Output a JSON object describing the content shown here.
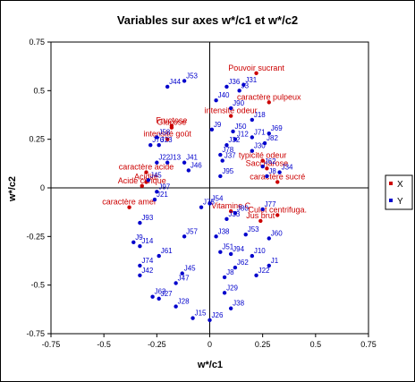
{
  "chart_data": {
    "type": "scatter",
    "title": "Variables sur axes w*/c1 et w*/c2",
    "xlabel": "w*/c1",
    "ylabel": "w*/c2",
    "xlim": [
      -0.75,
      0.75
    ],
    "ylim": [
      -0.75,
      0.75
    ],
    "xticks": [
      "-0.75",
      "-0.5",
      "-0.25",
      "0",
      "0.25",
      "0.5",
      "0.75"
    ],
    "yticks": [
      "0.75",
      "0.5",
      "0.25",
      "0",
      "-0.25",
      "-0.5",
      "-0.75"
    ],
    "legend": {
      "placement": "right",
      "entries": [
        "X",
        "Y"
      ]
    },
    "colors": {
      "X": "#cc0000",
      "Y": "#0000cc"
    },
    "series": [
      {
        "name": "X",
        "points": [
          {
            "label": "Pouvoir sucrant",
            "x": 0.22,
            "y": 0.59
          },
          {
            "label": "caractère pulpeux",
            "x": 0.28,
            "y": 0.44
          },
          {
            "label": "intensité odeur",
            "x": 0.1,
            "y": 0.37
          },
          {
            "label": "Fructose",
            "x": -0.18,
            "y": 0.32
          },
          {
            "label": "Glucose",
            "x": -0.18,
            "y": 0.31
          },
          {
            "label": "intensité goût",
            "x": -0.2,
            "y": 0.25
          },
          {
            "label": "typicité odeur",
            "x": 0.25,
            "y": 0.14
          },
          {
            "label": "Saccharose",
            "x": 0.27,
            "y": 0.1
          },
          {
            "label": "caractère acide",
            "x": -0.3,
            "y": 0.08
          },
          {
            "label": "caractère sucré",
            "x": 0.32,
            "y": 0.03
          },
          {
            "label": "Acidité",
            "x": -0.3,
            "y": 0.03
          },
          {
            "label": "Acide citrique",
            "x": -0.32,
            "y": 0.01
          },
          {
            "label": "caractère amer",
            "x": -0.38,
            "y": -0.1
          },
          {
            "label": "Vitamine C",
            "x": 0.1,
            "y": -0.12
          },
          {
            "label": "Culot centrifuga.",
            "x": 0.32,
            "y": -0.14
          },
          {
            "label": "Jus brut",
            "x": 0.24,
            "y": -0.17
          }
        ]
      },
      {
        "name": "Y",
        "points": [
          {
            "label": "J53",
            "x": -0.12,
            "y": 0.55
          },
          {
            "label": "J44",
            "x": -0.2,
            "y": 0.52
          },
          {
            "label": "J36",
            "x": 0.08,
            "y": 0.52
          },
          {
            "label": "J31",
            "x": 0.16,
            "y": 0.53
          },
          {
            "label": "J3",
            "x": 0.14,
            "y": 0.5
          },
          {
            "label": "J40",
            "x": 0.03,
            "y": 0.45
          },
          {
            "label": "J90",
            "x": 0.1,
            "y": 0.41
          },
          {
            "label": "J18",
            "x": 0.2,
            "y": 0.35
          },
          {
            "label": "J9",
            "x": 0.01,
            "y": 0.3
          },
          {
            "label": "J69",
            "x": 0.28,
            "y": 0.28
          },
          {
            "label": "J50",
            "x": 0.11,
            "y": 0.29
          },
          {
            "label": "J12",
            "x": 0.12,
            "y": 0.25
          },
          {
            "label": "J71",
            "x": 0.2,
            "y": 0.26
          },
          {
            "label": "J82",
            "x": 0.26,
            "y": 0.23
          },
          {
            "label": "J32",
            "x": 0.08,
            "y": 0.22
          },
          {
            "label": "J58",
            "x": -0.25,
            "y": 0.26
          },
          {
            "label": "J76",
            "x": -0.28,
            "y": 0.22
          },
          {
            "label": "J23",
            "x": -0.24,
            "y": 0.22
          },
          {
            "label": "J30",
            "x": 0.2,
            "y": 0.19
          },
          {
            "label": "J78",
            "x": 0.05,
            "y": 0.17
          },
          {
            "label": "J37",
            "x": 0.06,
            "y": 0.14
          },
          {
            "label": "J22",
            "x": -0.25,
            "y": 0.13
          },
          {
            "label": "J13",
            "x": -0.2,
            "y": 0.13
          },
          {
            "label": "J41",
            "x": -0.12,
            "y": 0.13
          },
          {
            "label": "J46",
            "x": -0.1,
            "y": 0.09
          },
          {
            "label": "J95",
            "x": 0.05,
            "y": 0.06
          },
          {
            "label": "J8",
            "x": 0.27,
            "y": 0.06
          },
          {
            "label": "J62",
            "x": 0.25,
            "y": 0.11
          },
          {
            "label": "J34",
            "x": 0.33,
            "y": 0.08
          },
          {
            "label": "J45",
            "x": -0.29,
            "y": 0.04
          },
          {
            "label": "J97",
            "x": -0.25,
            "y": -0.02
          },
          {
            "label": "J21",
            "x": -0.26,
            "y": -0.06
          },
          {
            "label": "J54",
            "x": 0.0,
            "y": -0.08
          },
          {
            "label": "J75",
            "x": -0.04,
            "y": -0.1
          },
          {
            "label": "J80",
            "x": 0.12,
            "y": -0.13
          },
          {
            "label": "J33",
            "x": 0.08,
            "y": -0.16
          },
          {
            "label": "J77",
            "x": 0.25,
            "y": -0.11
          },
          {
            "label": "J93",
            "x": -0.33,
            "y": -0.18
          },
          {
            "label": "J57",
            "x": -0.12,
            "y": -0.25
          },
          {
            "label": "J38a",
            "x": 0.03,
            "y": -0.25
          },
          {
            "label": "J53a",
            "x": 0.17,
            "y": -0.24
          },
          {
            "label": "J60",
            "x": 0.28,
            "y": -0.26
          },
          {
            "label": "J9a",
            "x": -0.36,
            "y": -0.28
          },
          {
            "label": "J14",
            "x": -0.33,
            "y": -0.3
          },
          {
            "label": "J51",
            "x": 0.05,
            "y": -0.33
          },
          {
            "label": "J94",
            "x": 0.1,
            "y": -0.34
          },
          {
            "label": "J61",
            "x": -0.24,
            "y": -0.35
          },
          {
            "label": "J10",
            "x": 0.2,
            "y": -0.35
          },
          {
            "label": "J74",
            "x": -0.33,
            "y": -0.4
          },
          {
            "label": "J62a",
            "x": 0.12,
            "y": -0.41
          },
          {
            "label": "J1a",
            "x": 0.28,
            "y": -0.4
          },
          {
            "label": "J42",
            "x": -0.33,
            "y": -0.45
          },
          {
            "label": "J45a",
            "x": -0.13,
            "y": -0.44
          },
          {
            "label": "J8a",
            "x": 0.07,
            "y": -0.46
          },
          {
            "label": "J22a",
            "x": 0.22,
            "y": -0.45
          },
          {
            "label": "J47",
            "x": -0.16,
            "y": -0.49
          },
          {
            "label": "J29",
            "x": 0.07,
            "y": -0.54
          },
          {
            "label": "J63",
            "x": -0.27,
            "y": -0.56
          },
          {
            "label": "J27",
            "x": -0.24,
            "y": -0.57
          },
          {
            "label": "J28",
            "x": -0.16,
            "y": -0.61
          },
          {
            "label": "J38",
            "x": 0.1,
            "y": -0.62
          },
          {
            "label": "J15",
            "x": -0.08,
            "y": -0.67
          },
          {
            "label": "J26",
            "x": 0.0,
            "y": -0.68
          }
        ]
      }
    ]
  }
}
